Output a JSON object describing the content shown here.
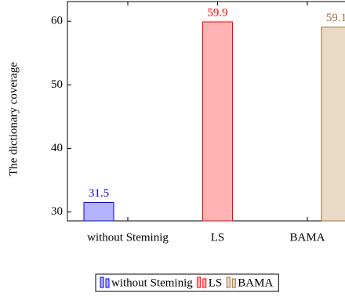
{
  "chart_data": {
    "type": "bar",
    "y_label": "The dictionary coverage",
    "categories": [
      "without Steminig",
      "LS",
      "BAMA"
    ],
    "series": [
      {
        "name": "without Steminig",
        "color": "#b3b3ff",
        "edge_color": "#0000ff",
        "values": [
          31.5,
          null,
          null
        ]
      },
      {
        "name": "LS",
        "color": "#ffb3b3",
        "edge_color": "#ff0000",
        "values": [
          null,
          59.9,
          null
        ]
      },
      {
        "name": "BAMA",
        "color": "#ead9c4",
        "edge_color": "#a0703c",
        "values": [
          null,
          null,
          59.1
        ]
      }
    ],
    "ylim": [
      28.6,
      63.1
    ],
    "yticks": [
      30,
      40,
      50,
      60
    ],
    "legend": "bottom"
  }
}
